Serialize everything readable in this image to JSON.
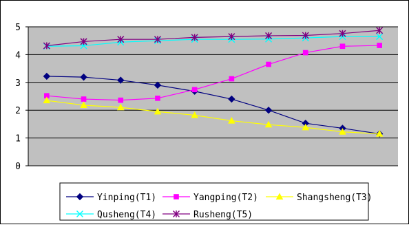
{
  "chart_data": {
    "type": "line",
    "x": [
      1,
      2,
      3,
      4,
      5,
      6,
      7,
      8,
      9,
      10
    ],
    "ylim": [
      0,
      5
    ],
    "yticks": [
      "0",
      "1",
      "2",
      "3",
      "4",
      "5"
    ],
    "grid": true,
    "legend_position": "bottom",
    "series": [
      {
        "name": "Yinping(T1)",
        "color": "#000080",
        "marker": "diamond",
        "values": [
          3.22,
          3.19,
          3.08,
          2.9,
          2.68,
          2.4,
          2.0,
          1.53,
          1.35,
          1.15
        ]
      },
      {
        "name": "Yangping(T2)",
        "color": "#ff00ff",
        "marker": "square",
        "values": [
          2.52,
          2.4,
          2.36,
          2.43,
          2.74,
          3.13,
          3.65,
          4.07,
          4.3,
          4.33
        ]
      },
      {
        "name": "Shangsheng(T3)",
        "color": "#ffff00",
        "marker": "triangle",
        "values": [
          2.35,
          2.18,
          2.1,
          1.95,
          1.82,
          1.62,
          1.48,
          1.38,
          1.22,
          1.15
        ]
      },
      {
        "name": "Qusheng(T4)",
        "color": "#00ffff",
        "marker": "x",
        "values": [
          4.3,
          4.32,
          4.45,
          4.5,
          4.55,
          4.55,
          4.56,
          4.6,
          4.65,
          4.65
        ]
      },
      {
        "name": "Rusheng(T5)",
        "color": "#800080",
        "marker": "star",
        "values": [
          4.32,
          4.47,
          4.55,
          4.55,
          4.62,
          4.65,
          4.68,
          4.69,
          4.76,
          4.87
        ]
      }
    ]
  }
}
